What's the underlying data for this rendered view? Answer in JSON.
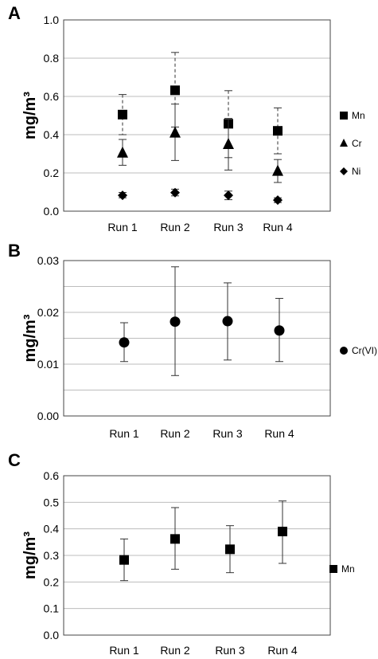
{
  "chart_data": [
    {
      "panel": "A",
      "type": "scatter",
      "ylabel": "mg/m³",
      "categories": [
        "Run 1",
        "Run 2",
        "Run 3",
        "Run 4"
      ],
      "ylim": [
        0,
        1.0
      ],
      "yticks": [
        "0.0",
        "0.2",
        "0.4",
        "0.6",
        "0.8",
        "1.0"
      ],
      "grid": true,
      "legend_position": "right",
      "series": [
        {
          "name": "Mn",
          "marker": "square",
          "error_style": "dashed",
          "values": [
            0.505,
            0.632,
            0.457,
            0.42
          ],
          "err_low": [
            0.4,
            0.44,
            0.28,
            0.3
          ],
          "err_high": [
            0.61,
            0.83,
            0.63,
            0.54
          ]
        },
        {
          "name": "Cr",
          "marker": "triangle",
          "error_style": "solid",
          "values": [
            0.305,
            0.41,
            0.35,
            0.21
          ],
          "err_low": [
            0.24,
            0.265,
            0.215,
            0.15
          ],
          "err_high": [
            0.375,
            0.56,
            0.485,
            0.27
          ]
        },
        {
          "name": "Ni",
          "marker": "diamond",
          "error_style": "solid",
          "values": [
            0.083,
            0.097,
            0.083,
            0.058
          ],
          "err_low": [
            0.07,
            0.08,
            0.06,
            0.045
          ],
          "err_high": [
            0.098,
            0.115,
            0.105,
            0.07
          ]
        }
      ]
    },
    {
      "panel": "B",
      "type": "scatter",
      "ylabel": "mg/m³",
      "categories": [
        "Run 1",
        "Run 2",
        "Run 3",
        "Run 4"
      ],
      "ylim": [
        0,
        0.03
      ],
      "yticks": [
        "0.00",
        "0.01",
        "0.02",
        "0.03"
      ],
      "grid": true,
      "legend_position": "right",
      "series": [
        {
          "name": "Cr(VI)",
          "marker": "circle",
          "error_style": "solid",
          "values": [
            0.0142,
            0.0182,
            0.0183,
            0.0165
          ],
          "err_low": [
            0.0105,
            0.0078,
            0.0108,
            0.0105
          ],
          "err_high": [
            0.018,
            0.0288,
            0.0257,
            0.0227
          ]
        }
      ]
    },
    {
      "panel": "C",
      "type": "scatter",
      "ylabel": "mg/m³",
      "categories": [
        "Run 1",
        "Run 2",
        "Run 3",
        "Run 4"
      ],
      "ylim": [
        0,
        0.6
      ],
      "yticks": [
        "0.0",
        "0.1",
        "0.2",
        "0.3",
        "0.4",
        "0.5",
        "0.6"
      ],
      "grid": true,
      "legend_position": "right",
      "series": [
        {
          "name": "Mn",
          "marker": "square",
          "error_style": "solid",
          "values": [
            0.283,
            0.362,
            0.323,
            0.39
          ],
          "err_low": [
            0.205,
            0.248,
            0.235,
            0.27
          ],
          "err_high": [
            0.362,
            0.48,
            0.412,
            0.505
          ]
        }
      ]
    }
  ]
}
